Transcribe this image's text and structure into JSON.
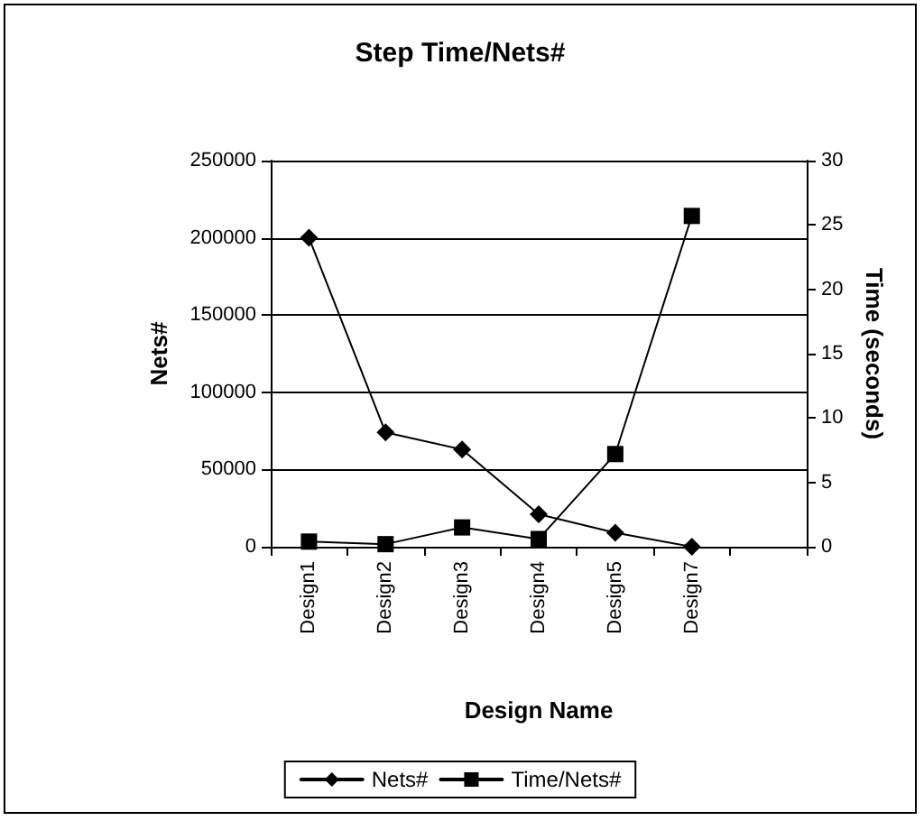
{
  "chart_data": {
    "type": "line",
    "title": "Step Time/Nets#",
    "xlabel": "Design Name",
    "ylabel": "Nets#",
    "y2label": "Time (seconds)",
    "categories": [
      "Design1",
      "Design2",
      "Design3",
      "Design4",
      "Design5",
      "Design7",
      null
    ],
    "series": [
      {
        "name": "Nets#",
        "color": "#000000",
        "marker": "diamond",
        "values": [
          200000,
          74000,
          63000,
          21000,
          9000,
          0,
          null
        ]
      },
      {
        "name": "Time/Nets#",
        "color": "#000000",
        "marker": "square",
        "axis": "y2",
        "values": [
          0.4,
          0.2,
          1.5,
          0.6,
          7.2,
          25.7,
          null
        ]
      }
    ],
    "ylim": [
      0,
      250000
    ],
    "yticks": [
      0,
      50000,
      100000,
      150000,
      200000,
      250000
    ],
    "y2lim": [
      0,
      30
    ],
    "y2ticks": [
      0,
      5,
      10,
      15,
      20,
      25,
      30
    ],
    "grid": "y",
    "legend": "bottom",
    "line_style": "solid"
  }
}
